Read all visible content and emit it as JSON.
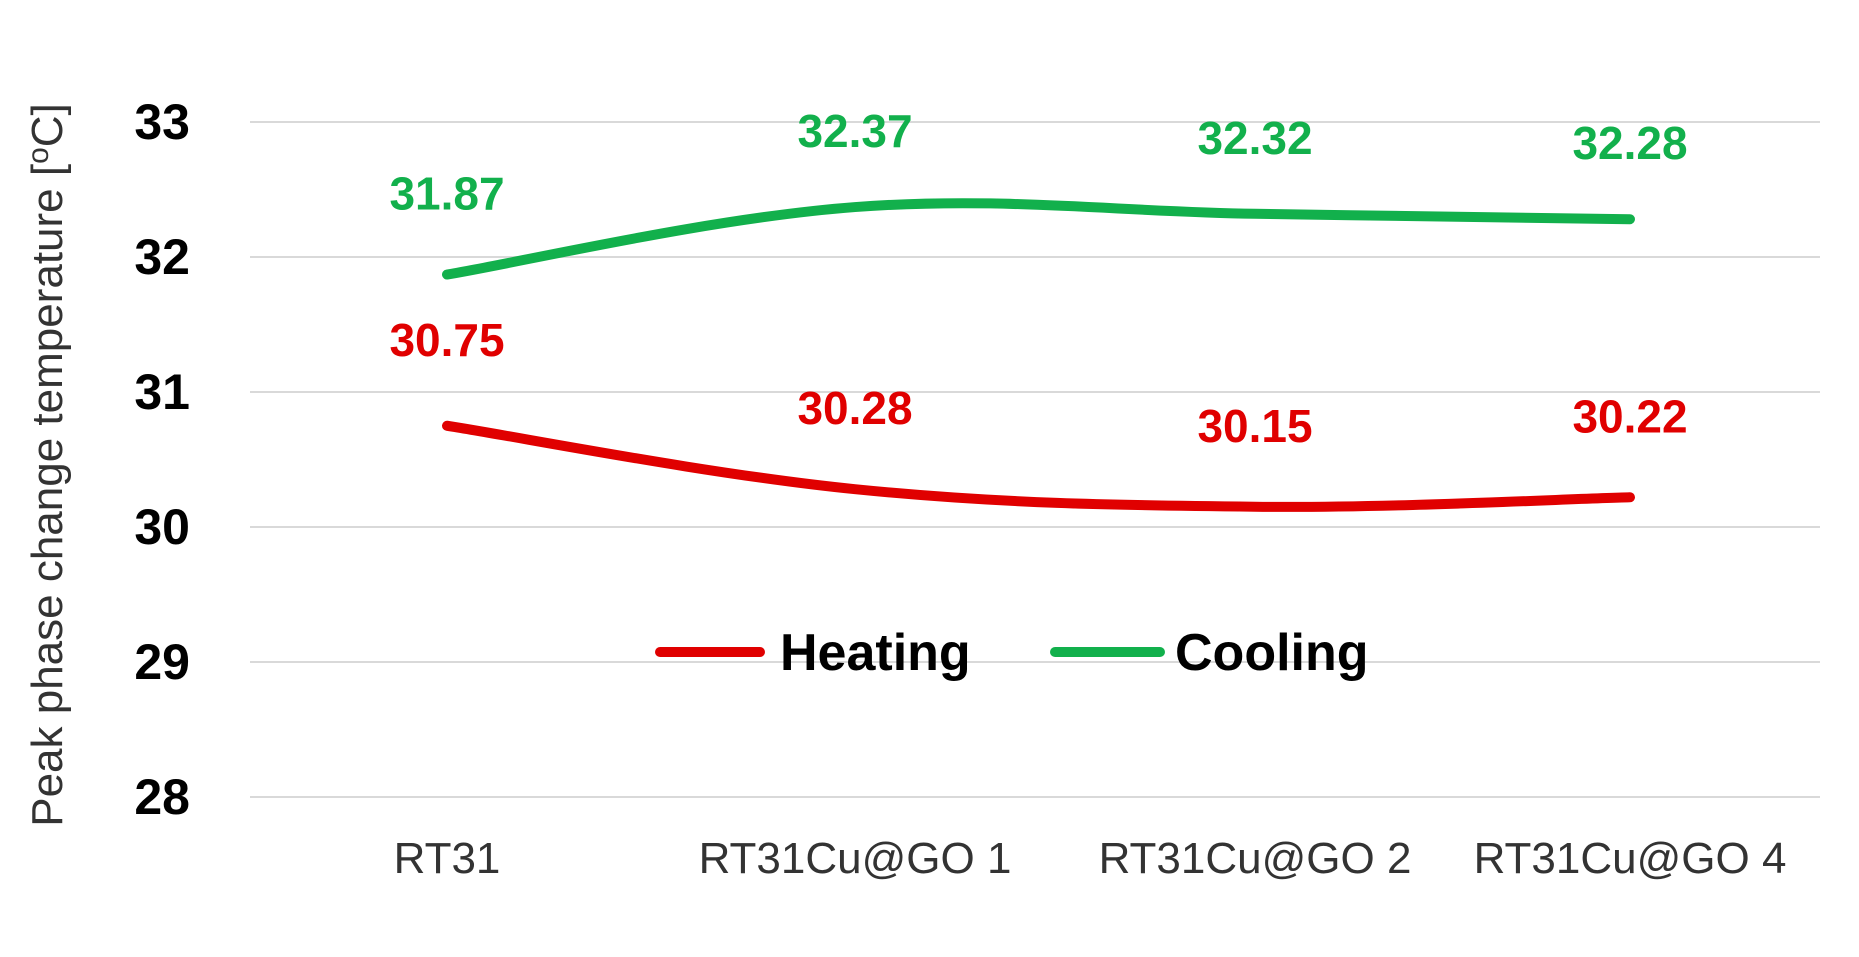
{
  "chart_data": {
    "type": "line",
    "title": "",
    "xlabel": "",
    "ylabel": "Peak phase change temperature [oC]",
    "ylabel_main": "Peak phase change temperature [",
    "ylabel_sup": "o",
    "ylabel_tail": "C]",
    "categories": [
      "RT31",
      "RT31Cu@GO 1",
      "RT31Cu@GO 2",
      "RT31Cu@GO 4"
    ],
    "ylim": [
      28,
      33
    ],
    "yticks": [
      "28",
      "29",
      "30",
      "31",
      "32",
      "33"
    ],
    "grid": true,
    "legend_position": "center",
    "series": [
      {
        "name": "Heating",
        "color": "#e00000",
        "values": [
          30.75,
          30.28,
          30.15,
          30.22
        ],
        "labels": [
          "30.75",
          "30.28",
          "30.15",
          "30.22"
        ]
      },
      {
        "name": "Cooling",
        "color": "#12b04c",
        "values": [
          31.87,
          32.37,
          32.32,
          32.28
        ],
        "labels": [
          "31.87",
          "32.37",
          "32.32",
          "32.28"
        ]
      }
    ]
  }
}
